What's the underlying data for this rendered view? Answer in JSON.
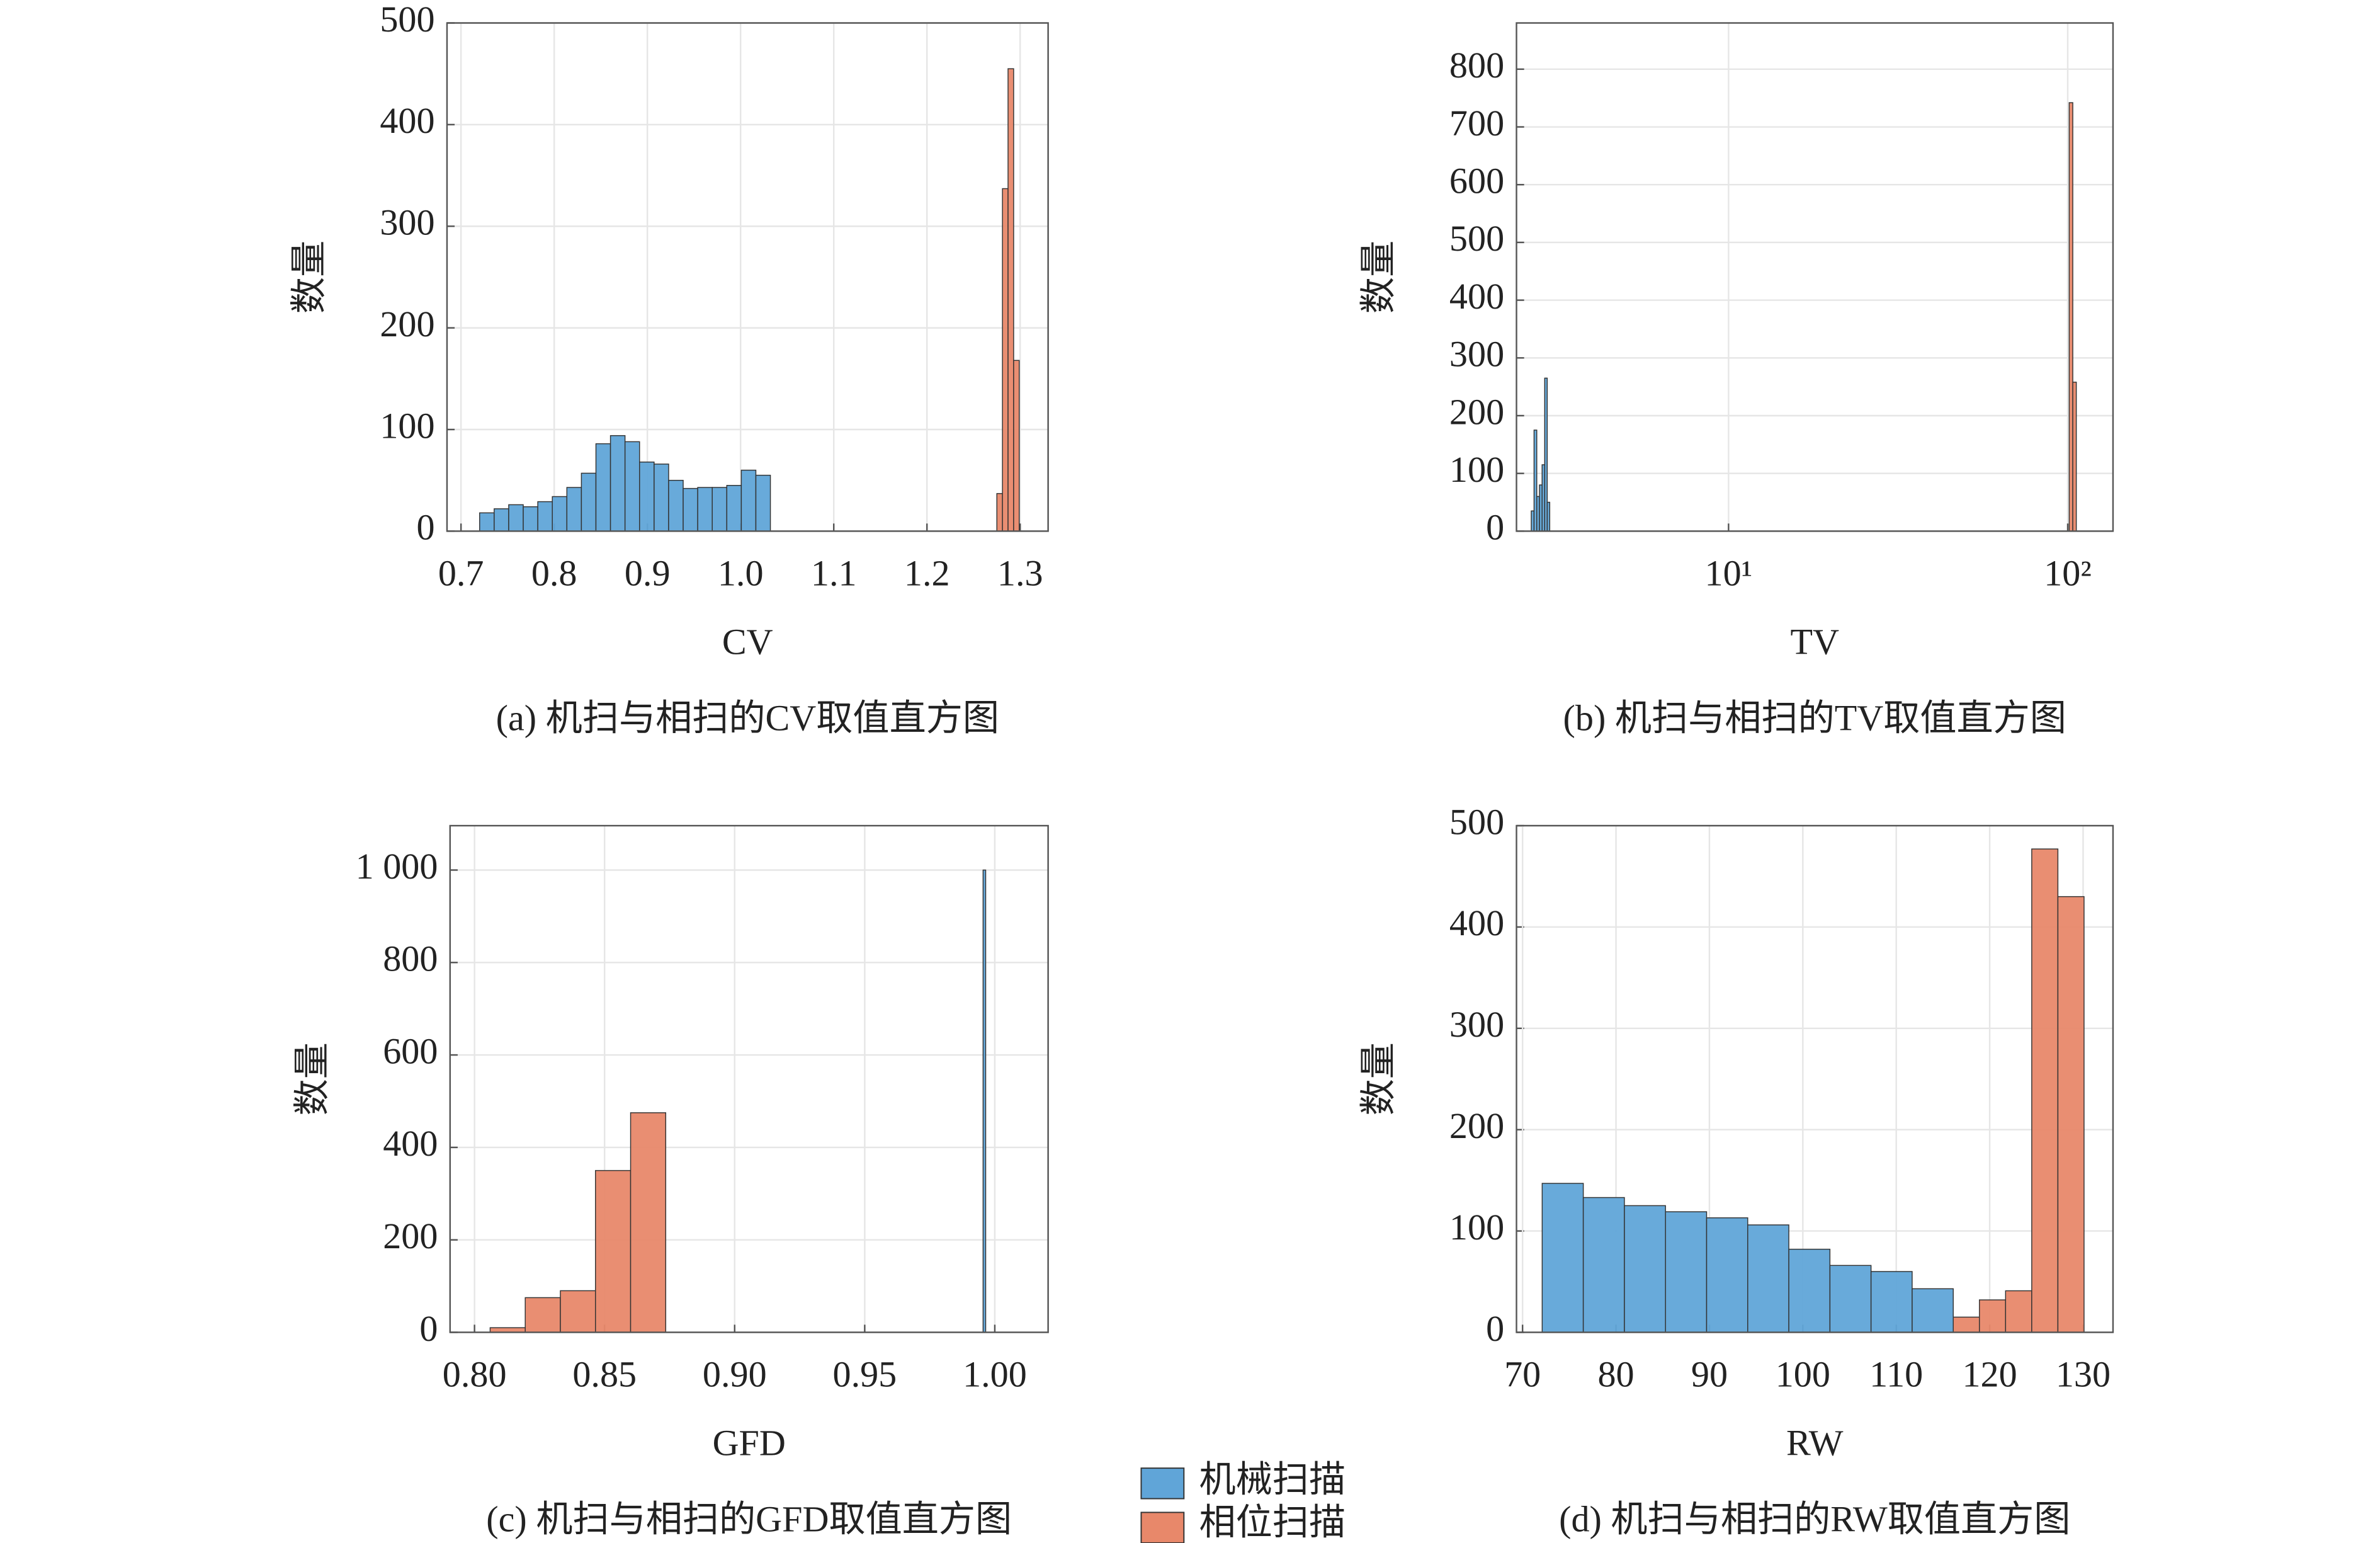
{
  "chart_data": [
    {
      "type": "histogram",
      "xlabel": "CV",
      "ylabel": "数量",
      "caption": "(a) 机扫与相扫的CV取值直方图",
      "xlim": [
        0.685,
        1.33
      ],
      "ylim": [
        0,
        500
      ],
      "xticks": [
        0.7,
        0.8,
        0.9,
        {
          "value": 1.0,
          "label": "1.0"
        },
        1.1,
        1.2,
        1.3
      ],
      "yticks": [
        0,
        100,
        200,
        300,
        400,
        500
      ],
      "grid": true,
      "series": [
        {
          "name": "机械扫描",
          "color": "#60a5d8",
          "bins": [
            0.72,
            0.7356,
            0.7512,
            0.7668,
            0.7824,
            0.798,
            0.8136,
            0.8292,
            0.8448,
            0.8604,
            0.876,
            0.8916,
            0.9072,
            0.9228,
            0.9384,
            0.954,
            0.9696,
            0.9852,
            1.0008,
            1.0164,
            1.032
          ],
          "values": [
            18,
            22,
            26,
            24,
            29,
            34,
            43,
            57,
            86,
            94,
            88,
            68,
            66,
            50,
            42,
            43,
            43,
            45,
            60,
            55
          ]
        },
        {
          "name": "相位扫描",
          "color": "#e8886a",
          "bins": [
            1.275,
            1.281,
            1.287,
            1.293,
            1.299
          ],
          "values": [
            37,
            337,
            455,
            168
          ]
        }
      ]
    },
    {
      "type": "histogram",
      "xlabel": "TV",
      "ylabel": "数量",
      "caption": "(b) 机扫与相扫的TV取值直方图",
      "xscale": "log",
      "xlim": [
        2.37,
        136
      ],
      "ylim": [
        0,
        880
      ],
      "xticks": [
        {
          "value": 10,
          "label": "10¹"
        },
        {
          "value": 100,
          "label": "10²"
        }
      ],
      "yticks": [
        0,
        100,
        200,
        300,
        400,
        500,
        600,
        700,
        800
      ],
      "grid": true,
      "series": [
        {
          "name": "机械扫描",
          "color": "#60a5d8",
          "bins": [
            2.62,
            2.67,
            2.72,
            2.77,
            2.82,
            2.87,
            2.92,
            2.97
          ],
          "values": [
            35,
            175,
            60,
            80,
            115,
            265,
            50
          ]
        },
        {
          "name": "相位扫描",
          "color": "#e8886a",
          "bins": [
            101,
            103.5,
            106
          ],
          "values": [
            742,
            258
          ]
        }
      ]
    },
    {
      "type": "histogram",
      "xlabel": "GFD",
      "ylabel": "数量",
      "caption": "(c) 机扫与相扫的GFD取值直方图",
      "xlim": [
        0.7906,
        1.0205
      ],
      "ylim": [
        0,
        1096
      ],
      "xticks": [
        {
          "value": 0.8,
          "label": "0.80"
        },
        0.85,
        {
          "value": 0.9,
          "label": "0.90"
        },
        0.95,
        {
          "value": 1.0,
          "label": "1.00"
        }
      ],
      "yticks": [
        0,
        200,
        400,
        600,
        800,
        {
          "value": 1000,
          "label": "1 000"
        }
      ],
      "grid": true,
      "series": [
        {
          "name": "机械扫描",
          "color": "#60a5d8",
          "bins": [
            0.9955,
            0.9965
          ],
          "values": [
            1000
          ]
        },
        {
          "name": "相位扫描",
          "color": "#e8886a",
          "bins": [
            0.806,
            0.8195,
            0.833,
            0.8465,
            0.86,
            0.8735
          ],
          "values": [
            10,
            75,
            90,
            350,
            475
          ]
        }
      ]
    },
    {
      "type": "histogram",
      "xlabel": "RW",
      "ylabel": "数量",
      "caption": "(d) 机扫与相扫的RW取值直方图",
      "xlim": [
        69.35,
        133.2
      ],
      "ylim": [
        0,
        500
      ],
      "xticks": [
        70,
        80,
        90,
        100,
        110,
        120,
        130
      ],
      "yticks": [
        0,
        100,
        200,
        300,
        400,
        500
      ],
      "grid": true,
      "series": [
        {
          "name": "机械扫描",
          "color": "#60a5d8",
          "bins": [
            72.1,
            76.5,
            80.9,
            85.3,
            89.7,
            94.1,
            98.5,
            102.9,
            107.3,
            111.7,
            116.1
          ],
          "values": [
            147,
            133,
            125,
            119,
            113,
            106,
            82,
            66,
            60,
            43
          ]
        },
        {
          "name": "相位扫描",
          "color": "#e8886a",
          "bins": [
            116.1,
            118.9,
            121.7,
            124.5,
            127.3,
            130.1
          ],
          "values": [
            15,
            32,
            41,
            477,
            430
          ]
        }
      ]
    }
  ]
}
